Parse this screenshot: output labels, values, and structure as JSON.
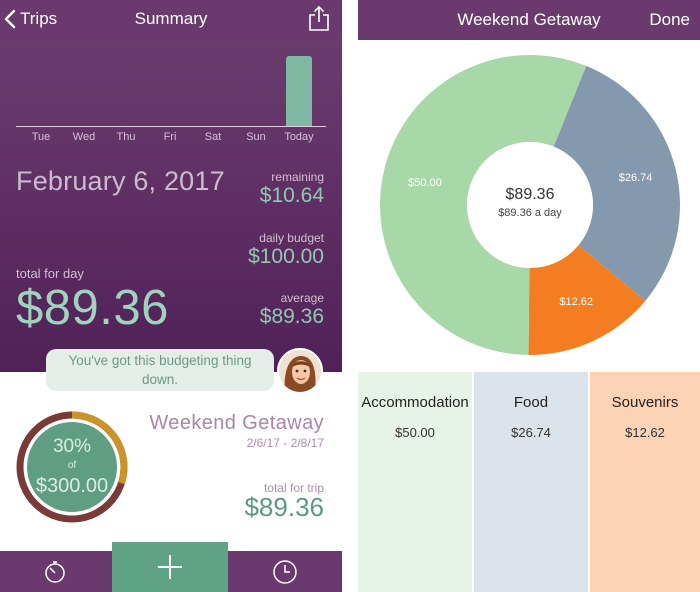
{
  "summary_screen": {
    "nav": {
      "back_label": "Trips",
      "title": "Summary"
    },
    "week": {
      "days": [
        "Tue",
        "Wed",
        "Thu",
        "Fri",
        "Sat",
        "Sun",
        "Today"
      ]
    },
    "date": "February 6, 2017",
    "remaining": {
      "label": "remaining",
      "value": "$10.64"
    },
    "daily_budget": {
      "label": "daily budget",
      "value": "$100.00"
    },
    "average": {
      "label": "average",
      "value": "$89.36"
    },
    "total_for_day": {
      "label": "total for day",
      "value": "$89.36"
    },
    "message": {
      "line1": "You've got this budgeting thing",
      "line2": "down."
    },
    "progress": {
      "percent": "30%",
      "of_label": "of",
      "total": "$300.00",
      "fraction": 0.3
    },
    "trip": {
      "name": "Weekend Getaway",
      "dates": "2/6/17 - 2/8/17",
      "total_label": "total for trip",
      "total_value": "$89.36"
    },
    "tabs": [
      "stopwatch-icon",
      "plus-icon",
      "clock-icon"
    ],
    "colors": {
      "accent_purple": "#6a3a6f",
      "accent_green": "#5fa284",
      "ring_ochre": "#c9952a",
      "ring_brown": "#7a3b38"
    }
  },
  "trip_screen": {
    "nav": {
      "title": "Weekend Getaway",
      "done_label": "Done"
    },
    "center": {
      "amount": "$89.36",
      "per_day": "$89.36 a day"
    },
    "chart_data": {
      "type": "pie",
      "categories": [
        "Accommodation",
        "Food",
        "Souvenirs"
      ],
      "values": [
        50.0,
        26.74,
        12.62
      ],
      "labels": [
        "$50.00",
        "$26.74",
        "$12.62"
      ],
      "colors": [
        "#a8d8a8",
        "#8499ad",
        "#f47d21"
      ]
    },
    "categories": [
      {
        "name": "Accommodation",
        "amount": "$50.00",
        "bg": "#e6f3e6"
      },
      {
        "name": "Food",
        "amount": "$26.74",
        "bg": "#dde3ea"
      },
      {
        "name": "Souvenirs",
        "amount": "$12.62",
        "bg": "#fcd3b4"
      }
    ]
  }
}
